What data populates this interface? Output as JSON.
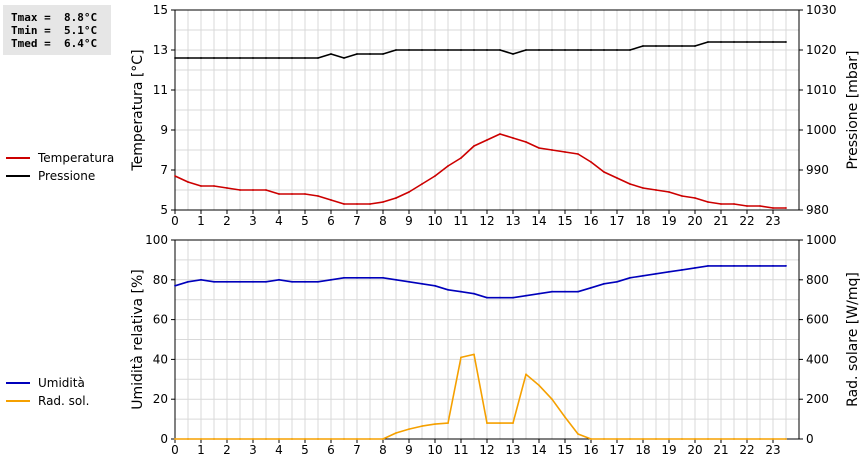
{
  "stats": {
    "tmax": "Tmax =  8.8°C",
    "tmin": "Tmin =  5.1°C",
    "tmed": "Tmed =  6.4°C"
  },
  "chart_data": [
    {
      "type": "line",
      "x_ticks": [
        0,
        1,
        2,
        3,
        4,
        5,
        6,
        7,
        8,
        9,
        10,
        11,
        12,
        13,
        14,
        15,
        16,
        17,
        18,
        19,
        20,
        21,
        22,
        23
      ],
      "xlim": [
        0,
        24
      ],
      "ylabel_left": "Temperatura [°C]",
      "ylim_left": [
        5,
        15
      ],
      "yticks_left": [
        5,
        7,
        9,
        11,
        13,
        15
      ],
      "ylabel_right": "Pressione [mbar]",
      "ylim_right": [
        980,
        1030
      ],
      "yticks_right": [
        980,
        990,
        1000,
        1010,
        1020,
        1030
      ],
      "grid": true,
      "legend_position": "left",
      "series": [
        {
          "name": "Temperatura",
          "color": "#cc0000",
          "axis": "left",
          "x": [
            0,
            0.5,
            1,
            1.5,
            2,
            2.5,
            3,
            3.5,
            4,
            4.5,
            5,
            5.5,
            6,
            6.5,
            7,
            7.5,
            8,
            8.5,
            9,
            9.5,
            10,
            10.5,
            11,
            11.5,
            12,
            12.5,
            13,
            13.5,
            14,
            14.5,
            15,
            15.5,
            16,
            16.5,
            17,
            17.5,
            18,
            18.5,
            19,
            19.5,
            20,
            20.5,
            21,
            21.5,
            22,
            22.5,
            23,
            23.5
          ],
          "values": [
            6.7,
            6.4,
            6.2,
            6.2,
            6.1,
            6.0,
            6.0,
            6.0,
            5.8,
            5.8,
            5.8,
            5.7,
            5.5,
            5.3,
            5.3,
            5.3,
            5.4,
            5.6,
            5.9,
            6.3,
            6.7,
            7.2,
            7.6,
            8.2,
            8.5,
            8.8,
            8.6,
            8.4,
            8.1,
            8.0,
            7.9,
            7.8,
            7.4,
            6.9,
            6.6,
            6.3,
            6.1,
            6.0,
            5.9,
            5.7,
            5.6,
            5.4,
            5.3,
            5.3,
            5.2,
            5.2,
            5.1,
            5.1
          ]
        },
        {
          "name": "Pressione",
          "color": "#000000",
          "axis": "right",
          "x": [
            0,
            0.5,
            1,
            1.5,
            2,
            2.5,
            3,
            3.5,
            4,
            4.5,
            5,
            5.5,
            6,
            6.5,
            7,
            7.5,
            8,
            8.5,
            9,
            9.5,
            10,
            10.5,
            11,
            11.5,
            12,
            12.5,
            13,
            13.5,
            14,
            14.5,
            15,
            15.5,
            16,
            16.5,
            17,
            17.5,
            18,
            18.5,
            19,
            19.5,
            20,
            20.5,
            21,
            21.5,
            22,
            22.5,
            23,
            23.5
          ],
          "values": [
            1018,
            1018,
            1018,
            1018,
            1018,
            1018,
            1018,
            1018,
            1018,
            1018,
            1018,
            1018,
            1019,
            1018,
            1019,
            1019,
            1019,
            1020,
            1020,
            1020,
            1020,
            1020,
            1020,
            1020,
            1020,
            1020,
            1019,
            1020,
            1020,
            1020,
            1020,
            1020,
            1020,
            1020,
            1020,
            1020,
            1021,
            1021,
            1021,
            1021,
            1021,
            1022,
            1022,
            1022,
            1022,
            1022,
            1022,
            1022
          ]
        }
      ]
    },
    {
      "type": "line",
      "x_ticks": [
        0,
        1,
        2,
        3,
        4,
        5,
        6,
        7,
        8,
        9,
        10,
        11,
        12,
        13,
        14,
        15,
        16,
        17,
        18,
        19,
        20,
        21,
        22,
        23
      ],
      "xlim": [
        0,
        24
      ],
      "ylabel_left": "Umidità relativa [%]",
      "ylim_left": [
        0,
        100
      ],
      "yticks_left": [
        0,
        20,
        40,
        60,
        80,
        100
      ],
      "ylabel_right": "Rad. solare [W/mq]",
      "ylim_right": [
        0,
        1000
      ],
      "yticks_right": [
        0,
        200,
        400,
        600,
        800,
        1000
      ],
      "grid": true,
      "legend_position": "left",
      "series": [
        {
          "name": "Umidità",
          "color": "#0000bb",
          "axis": "left",
          "x": [
            0,
            0.5,
            1,
            1.5,
            2,
            2.5,
            3,
            3.5,
            4,
            4.5,
            5,
            5.5,
            6,
            6.5,
            7,
            7.5,
            8,
            8.5,
            9,
            9.5,
            10,
            10.5,
            11,
            11.5,
            12,
            12.5,
            13,
            13.5,
            14,
            14.5,
            15,
            15.5,
            16,
            16.5,
            17,
            17.5,
            18,
            18.5,
            19,
            19.5,
            20,
            20.5,
            21,
            21.5,
            22,
            22.5,
            23,
            23.5
          ],
          "values": [
            77,
            79,
            80,
            79,
            79,
            79,
            79,
            79,
            80,
            79,
            79,
            79,
            80,
            81,
            81,
            81,
            81,
            80,
            79,
            78,
            77,
            75,
            74,
            73,
            71,
            71,
            71,
            72,
            73,
            74,
            74,
            74,
            76,
            78,
            79,
            81,
            82,
            83,
            84,
            85,
            86,
            87,
            87,
            87,
            87,
            87,
            87,
            87
          ]
        },
        {
          "name": "Rad. sol.",
          "color": "#f5a000",
          "axis": "right",
          "x": [
            0,
            0.5,
            1,
            1.5,
            2,
            2.5,
            3,
            3.5,
            4,
            4.5,
            5,
            5.5,
            6,
            6.5,
            7,
            7.5,
            8,
            8.5,
            9,
            9.5,
            10,
            10.5,
            11,
            11.5,
            12,
            12.5,
            13,
            13.5,
            14,
            14.5,
            15,
            15.5,
            16,
            16.5,
            17,
            17.5,
            18,
            18.5,
            19,
            19.5,
            20,
            20.5,
            21,
            21.5,
            22,
            22.5,
            23,
            23.5
          ],
          "values": [
            0,
            0,
            0,
            0,
            0,
            0,
            0,
            0,
            0,
            0,
            0,
            0,
            0,
            0,
            0,
            0,
            0,
            30,
            50,
            65,
            75,
            80,
            410,
            425,
            80,
            80,
            80,
            325,
            270,
            200,
            110,
            25,
            0,
            0,
            0,
            0,
            0,
            0,
            0,
            0,
            0,
            0,
            0,
            0,
            0,
            0,
            0,
            0
          ]
        }
      ]
    }
  ]
}
